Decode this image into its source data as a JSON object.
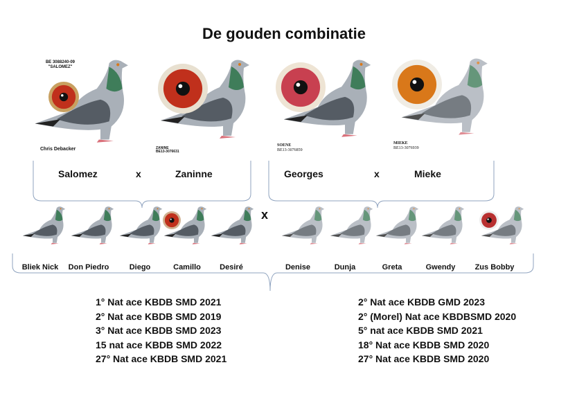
{
  "title": "De gouden combinatie",
  "parents": {
    "left_pair": {
      "sire": "Salomez",
      "cross": "x",
      "dam": "Zaninne"
    },
    "right_pair": {
      "sire": "Georges",
      "cross": "x",
      "dam": "Mieke"
    },
    "captions": {
      "salomez_ring": "BE 3088240-09",
      "salomez_nick": "\"SALOMEZ\"",
      "salomez_owner": "Chris Debacker",
      "zanine_name": "ZANINE",
      "zanine_ring": "BE13-3076631",
      "soene_name": "SOENE",
      "soene_ring": "BE13-3076859",
      "mieke_name": "MIEKE",
      "mieke_ring": "BE13-3076939"
    }
  },
  "children": {
    "left": [
      "Bliek Nick",
      "Don Piedro",
      "Diego",
      "Camillo",
      "Desiré"
    ],
    "cross": "x",
    "right": [
      "Denise",
      "Dunja",
      "Greta",
      "Gwendy",
      "Zus Bobby"
    ]
  },
  "achievements": {
    "left": [
      "1° Nat ace KBDB SMD 2021",
      "2° Nat ace KBDB SMD 2019",
      "3° Nat ace KBDB SMD 2023",
      "15 nat ace KBDB SMD 2022",
      "27° Nat ace KBDB SMD 2021"
    ],
    "right": [
      "2° Nat ace KBDB GMD 2023",
      "2° (Morel) Nat ace KBDBSMD 2020",
      "5° nat ace KBDB SMD 2021",
      "18° Nat ace KBDB SMD 2020",
      "27° Nat ace KBDB SMD 2020"
    ]
  },
  "colors": {
    "bracket": "#8fa3bf",
    "eye_red": "#c0301c",
    "eye_orange": "#d9781a",
    "pigeon_grey": "#a9b0b8",
    "pigeon_dark": "#3a4048",
    "neck_green": "#3f7d5a"
  }
}
